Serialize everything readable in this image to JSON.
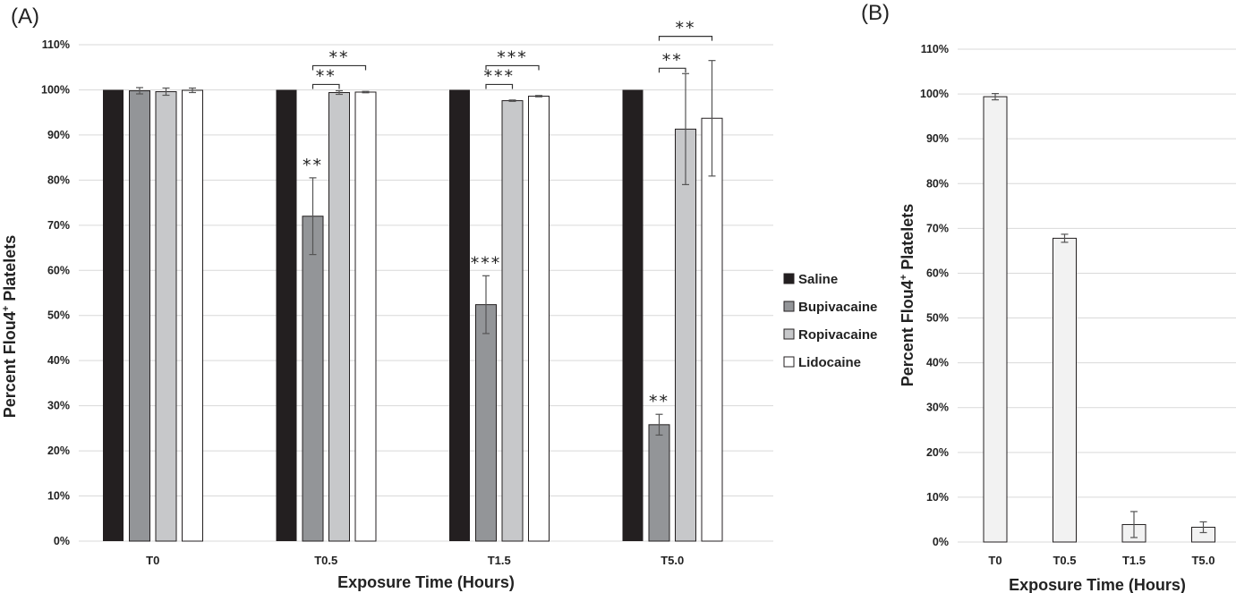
{
  "chart_data": [
    {
      "type": "bar",
      "panel_label": "(A)",
      "categories": [
        "T0",
        "T0.5",
        "T1.5",
        "T5.0"
      ],
      "xlabel": "Exposure Time (Hours)",
      "ylabel": "Percent Flou4",
      "ylabel_sup": "+",
      "ylabel_end": " Platelets",
      "ylim": [
        0,
        110
      ],
      "yticks": [
        "0%",
        "10%",
        "20%",
        "30%",
        "40%",
        "50%",
        "60%",
        "70%",
        "80%",
        "90%",
        "100%",
        "110%"
      ],
      "grid": true,
      "legend_position": "right",
      "series": [
        {
          "name": "Saline",
          "color": "#231f20",
          "values": [
            100,
            100,
            100,
            100
          ],
          "errors": [
            0,
            0,
            0,
            0
          ]
        },
        {
          "name": "Bupivacaine",
          "color": "#939598",
          "values": [
            99.8,
            72,
            52.4,
            25.8
          ],
          "errors": [
            0.7,
            8.5,
            6.4,
            2.3
          ]
        },
        {
          "name": "Ropivacaine",
          "color": "#c7c8ca",
          "values": [
            99.6,
            99.4,
            97.6,
            91.3
          ],
          "errors": [
            0.8,
            0.4,
            0.15,
            12.3
          ]
        },
        {
          "name": "Lidocaine",
          "color": "#ffffff",
          "values": [
            99.9,
            99.5,
            98.6,
            93.7
          ],
          "errors": [
            0.5,
            0.15,
            0.15,
            12.8
          ]
        }
      ],
      "annotations": [
        {
          "text": "**",
          "category": 1,
          "series": 1,
          "type": "bar"
        },
        {
          "text": "***",
          "category": 2,
          "series": 1,
          "type": "bar"
        },
        {
          "text": "**",
          "category": 3,
          "series": 1,
          "type": "bar"
        },
        {
          "text": "**",
          "category": 1,
          "from": 1,
          "to": 2,
          "type": "bracket",
          "level": 0
        },
        {
          "text": "**",
          "category": 1,
          "from": 1,
          "to": 3,
          "type": "bracket",
          "level": 1
        },
        {
          "text": "***",
          "category": 2,
          "from": 1,
          "to": 2,
          "type": "bracket",
          "level": 0
        },
        {
          "text": "***",
          "category": 2,
          "from": 1,
          "to": 3,
          "type": "bracket",
          "level": 1
        },
        {
          "text": "**",
          "category": 3,
          "from": 1,
          "to": 2,
          "type": "bracket",
          "level": 0
        },
        {
          "text": "**",
          "category": 3,
          "from": 1,
          "to": 3,
          "type": "bracket",
          "level": 1
        }
      ]
    },
    {
      "type": "bar",
      "panel_label": "(B)",
      "categories": [
        "T0",
        "T0.5",
        "T1.5",
        "T5.0"
      ],
      "xlabel": "Exposure Time (Hours)",
      "ylabel": "Percent Flou4",
      "ylabel_sup": "+",
      "ylabel_end": " Platelets",
      "ylim": [
        0,
        110
      ],
      "yticks": [
        "0%",
        "10%",
        "20%",
        "30%",
        "40%",
        "50%",
        "60%",
        "70%",
        "80%",
        "90%",
        "100%",
        "110%"
      ],
      "grid": true,
      "series": [
        {
          "color": "#f2f2f2",
          "values": [
            99.4,
            67.8,
            3.9,
            3.3
          ],
          "errors": [
            0.7,
            0.9,
            2.9,
            1.2
          ]
        }
      ]
    }
  ]
}
